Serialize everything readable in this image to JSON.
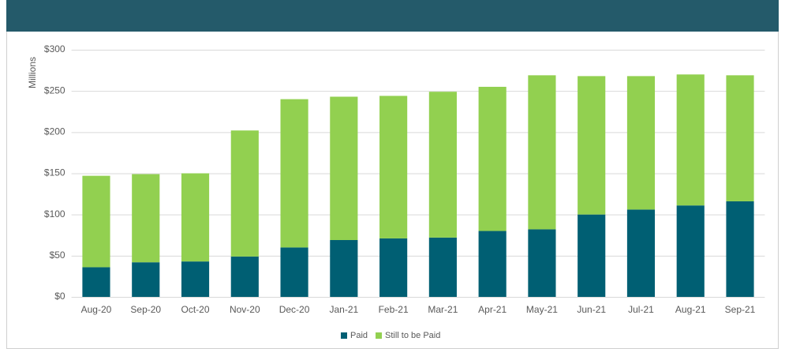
{
  "chart_data": {
    "type": "stacked-bar",
    "y_axis_label": "Millions",
    "categories": [
      "Aug-20",
      "Sep-20",
      "Oct-20",
      "Nov-20",
      "Dec-20",
      "Jan-21",
      "Feb-21",
      "Mar-21",
      "Apr-21",
      "May-21",
      "Jun-21",
      "Jul-21",
      "Aug-21",
      "Sep-21"
    ],
    "series": [
      {
        "name": "Paid",
        "color": "#005f73",
        "values": [
          36,
          42,
          43,
          49,
          60,
          69,
          71,
          72,
          80,
          82,
          100,
          106,
          111,
          116
        ]
      },
      {
        "name": "Still to be Paid",
        "color": "#92d050",
        "values": [
          111,
          107,
          107,
          153,
          180,
          174,
          173,
          177,
          175,
          187,
          168,
          162,
          159,
          153
        ]
      }
    ],
    "ylim": [
      0,
      300
    ],
    "yticks": [
      {
        "value": 0,
        "label": "$0"
      },
      {
        "value": 50,
        "label": "$50"
      },
      {
        "value": 100,
        "label": "$100"
      },
      {
        "value": 150,
        "label": "$150"
      },
      {
        "value": 200,
        "label": "$200"
      },
      {
        "value": 250,
        "label": "$250"
      },
      {
        "value": 300,
        "label": "$300"
      }
    ],
    "grid": true,
    "legend": "bottom"
  }
}
